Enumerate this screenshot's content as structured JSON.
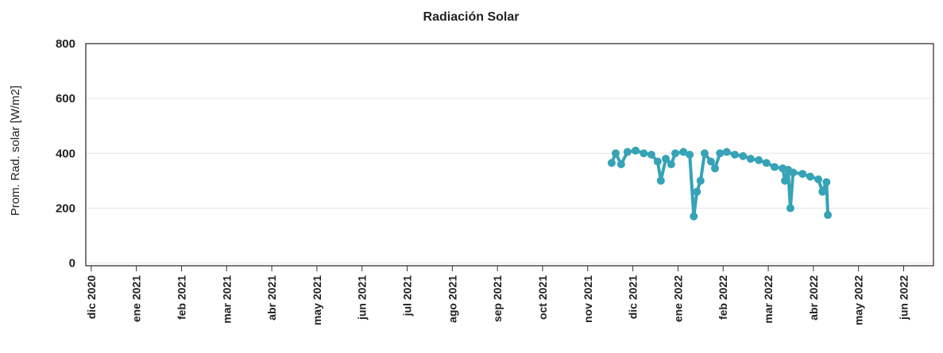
{
  "chart_data": {
    "type": "line",
    "title": "Radiación Solar",
    "y_label": "Prom. Rad. solar [W/m2]",
    "color": "#36a3b6",
    "grid": true,
    "x": [
      11.53,
      11.62,
      11.74,
      11.88,
      12.06,
      12.24,
      12.41,
      12.55,
      12.62,
      12.73,
      12.85,
      12.94,
      13.12,
      13.26,
      13.35,
      13.42,
      13.5,
      13.59,
      13.73,
      13.82,
      13.93,
      14.08,
      14.26,
      14.44,
      14.61,
      14.79,
      14.96,
      15.14,
      15.32,
      15.37,
      15.44,
      15.49,
      15.55,
      15.76,
      15.93,
      16.11,
      16.2,
      16.29,
      16.32
    ],
    "values": [
      365,
      400,
      360,
      405,
      410,
      400,
      395,
      370,
      300,
      380,
      360,
      400,
      405,
      395,
      170,
      260,
      300,
      400,
      370,
      345,
      400,
      405,
      395,
      390,
      380,
      375,
      365,
      350,
      345,
      300,
      340,
      200,
      330,
      325,
      315,
      305,
      260,
      295,
      175
    ],
    "xlim": [
      -0.12,
      18.66
    ],
    "ylim": [
      -10,
      800
    ],
    "xticks": [
      {
        "value": 0,
        "label": "dic 2020"
      },
      {
        "value": 1,
        "label": "ene 2021"
      },
      {
        "value": 2,
        "label": "feb 2021"
      },
      {
        "value": 3,
        "label": "mar 2021"
      },
      {
        "value": 4,
        "label": "abr 2021"
      },
      {
        "value": 5,
        "label": "may 2021"
      },
      {
        "value": 6,
        "label": "jun 2021"
      },
      {
        "value": 7,
        "label": "jul 2021"
      },
      {
        "value": 8,
        "label": "ago 2021"
      },
      {
        "value": 9,
        "label": "sep 2021"
      },
      {
        "value": 10,
        "label": "oct 2021"
      },
      {
        "value": 11,
        "label": "nov 2021"
      },
      {
        "value": 12,
        "label": "dic 2021"
      },
      {
        "value": 13,
        "label": "ene 2022"
      },
      {
        "value": 14,
        "label": "feb 2022"
      },
      {
        "value": 15,
        "label": "mar 2022"
      },
      {
        "value": 16,
        "label": "abr 2022"
      },
      {
        "value": 17,
        "label": "may 2022"
      },
      {
        "value": 18,
        "label": "jun 2022"
      }
    ],
    "yticks": [
      0,
      200,
      400,
      600,
      800
    ]
  }
}
